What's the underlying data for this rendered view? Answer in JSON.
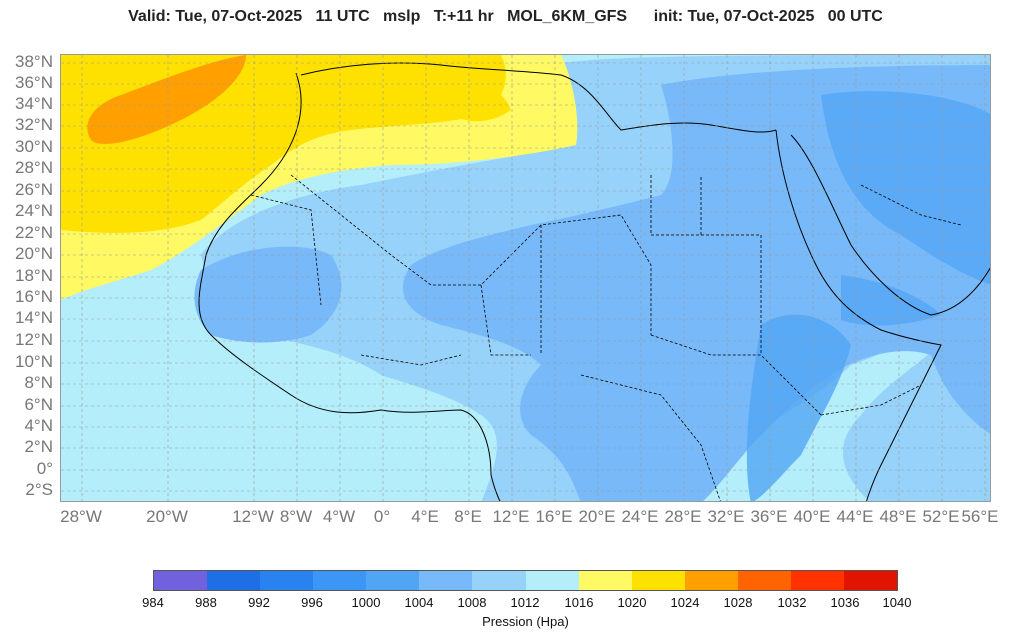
{
  "header": {
    "valid": "Valid: Tue, 07-Oct-2025   11 UTC   mslp   T:+11 hr   MOL_6KM_GFS      init: Tue, 07-Oct-2025   00 UTC"
  },
  "map": {
    "lat_labels": [
      "38°N",
      "36°N",
      "34°N",
      "32°N",
      "30°N",
      "28°N",
      "26°N",
      "24°N",
      "22°N",
      "20°N",
      "18°N",
      "16°N",
      "14°N",
      "12°N",
      "10°N",
      "8°N",
      "6°N",
      "4°N",
      "2°N",
      "0°",
      "2°S"
    ],
    "lon_labels": [
      "28°W",
      "20°W",
      "12°W",
      "8°W",
      "4°W",
      "0°",
      "4°E",
      "8°E",
      "12°E",
      "16°E",
      "20°E",
      "24°E",
      "28°E",
      "32°E",
      "36°E",
      "40°E",
      "44°E",
      "48°E",
      "52°E",
      "56°E"
    ],
    "grid": true,
    "colors": {
      "p1016": "#b4eefa",
      "p1012": "#96d2fa",
      "p1008": "#78b9fa",
      "p1004": "#50a5f5",
      "p1020": "#fffa64",
      "p1024": "#ffe100",
      "p1028": "#ffa000"
    }
  },
  "colorbar": {
    "colors": [
      "#7161dc",
      "#1e6ee6",
      "#2882f0",
      "#3c96f5",
      "#50a5f5",
      "#78b9fa",
      "#96d2fa",
      "#b4eefa",
      "#fffa64",
      "#ffe100",
      "#ffa000",
      "#ff6400",
      "#ff3200",
      "#e11400"
    ],
    "labels": [
      "984",
      "988",
      "992",
      "996",
      "1000",
      "1004",
      "1008",
      "1012",
      "1016",
      "1020",
      "1024",
      "1028",
      "1032",
      "1036",
      "1040"
    ],
    "unit": "Pression (Hpa)"
  }
}
